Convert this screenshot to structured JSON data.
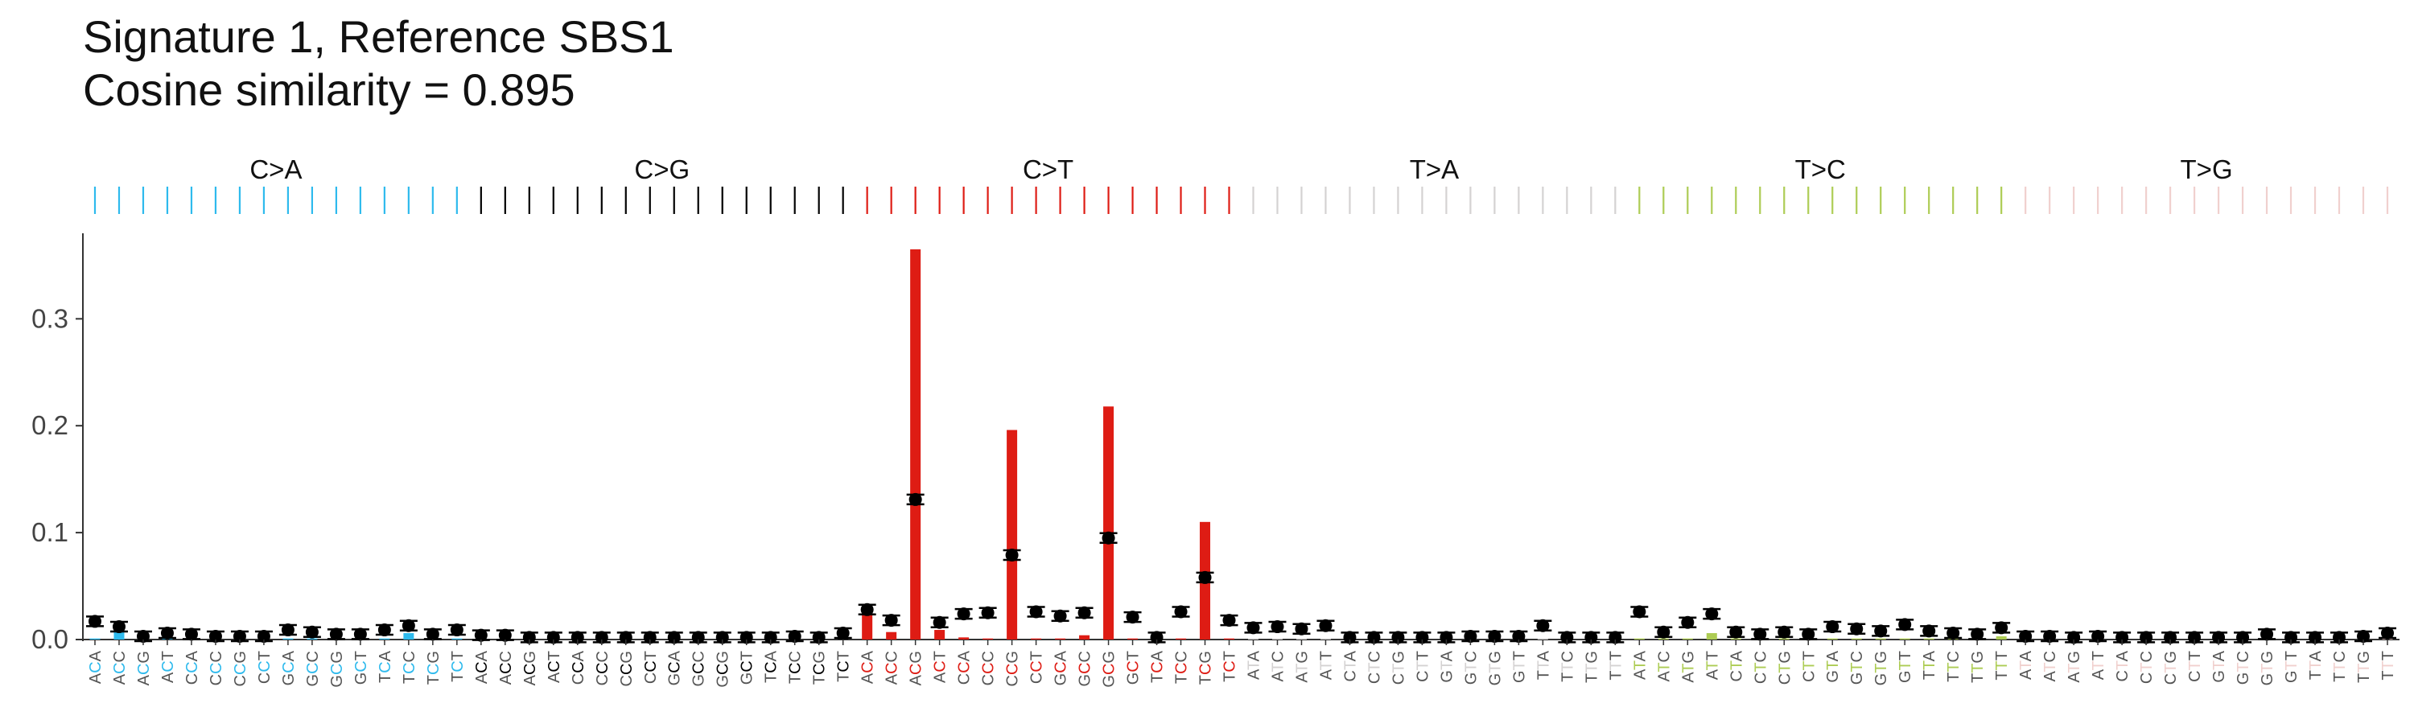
{
  "title_line1": "Signature 1, Reference SBS1",
  "title_line2": "Cosine similarity = 0.895",
  "chart_data": {
    "type": "bar",
    "mutation_types": [
      "C>A",
      "C>G",
      "C>T",
      "T>A",
      "T>C",
      "T>G"
    ],
    "type_colors": [
      "#2EBAED",
      "#000000",
      "#DE1C14",
      "#D4D2D2",
      "#ADCC54",
      "#F0D0CE"
    ],
    "contexts_c": [
      "ACA",
      "ACC",
      "ACG",
      "ACT",
      "CCA",
      "CCC",
      "CCG",
      "CCT",
      "GCA",
      "GCC",
      "GCG",
      "GCT",
      "TCA",
      "TCC",
      "TCG",
      "TCT"
    ],
    "contexts_t": [
      "ATA",
      "ATC",
      "ATG",
      "ATT",
      "CTA",
      "CTC",
      "CTG",
      "CTT",
      "GTA",
      "GTC",
      "GTG",
      "GTT",
      "TTA",
      "TTC",
      "TTG",
      "TTT"
    ],
    "ylim": [
      0,
      0.38
    ],
    "yticks": [
      0.0,
      0.1,
      0.2,
      0.3
    ],
    "ytick_labels": [
      "0.0",
      "0.1",
      "0.2",
      "0.3"
    ],
    "series": [
      {
        "name": "Reference SBS1",
        "values": [
          0.001,
          0.01,
          0.001,
          0.001,
          0.001,
          0.001,
          0.001,
          0.001,
          0.001,
          0.001,
          0.001,
          0.001,
          0.001,
          0.006,
          0.001,
          0.001,
          0.001,
          0.001,
          0.001,
          0.001,
          0.001,
          0.001,
          0.001,
          0.001,
          0.001,
          0.001,
          0.001,
          0.001,
          0.001,
          0.001,
          0.001,
          0.001,
          0.025,
          0.007,
          0.365,
          0.009,
          0.002,
          0.001,
          0.196,
          0.001,
          0.001,
          0.004,
          0.218,
          0.001,
          0.001,
          0.001,
          0.11,
          0.001,
          0.001,
          0.001,
          0.001,
          0.001,
          0.001,
          0.001,
          0.001,
          0.001,
          0.001,
          0.001,
          0.001,
          0.001,
          0.001,
          0.001,
          0.001,
          0.001,
          0.001,
          0.001,
          0.001,
          0.006,
          0.001,
          0.001,
          0.001,
          0.001,
          0.001,
          0.001,
          0.001,
          0.001,
          0.001,
          0.001,
          0.001,
          0.003,
          0.001,
          0.001,
          0.001,
          0.001,
          0.001,
          0.001,
          0.001,
          0.001,
          0.001,
          0.001,
          0.001,
          0.001,
          0.001,
          0.001,
          0.001,
          0.001
        ]
      },
      {
        "name": "Signature 1",
        "values": [
          0.017,
          0.012,
          0.003,
          0.006,
          0.005,
          0.003,
          0.003,
          0.003,
          0.009,
          0.007,
          0.005,
          0.005,
          0.009,
          0.013,
          0.005,
          0.009,
          0.004,
          0.004,
          0.002,
          0.002,
          0.002,
          0.002,
          0.002,
          0.002,
          0.002,
          0.002,
          0.002,
          0.002,
          0.002,
          0.003,
          0.002,
          0.006,
          0.028,
          0.018,
          0.131,
          0.016,
          0.024,
          0.025,
          0.079,
          0.026,
          0.022,
          0.025,
          0.095,
          0.021,
          0.002,
          0.026,
          0.058,
          0.018,
          0.011,
          0.012,
          0.01,
          0.013,
          0.002,
          0.002,
          0.002,
          0.002,
          0.002,
          0.003,
          0.003,
          0.003,
          0.013,
          0.002,
          0.002,
          0.002,
          0.026,
          0.007,
          0.016,
          0.024,
          0.007,
          0.005,
          0.007,
          0.005,
          0.012,
          0.01,
          0.008,
          0.014,
          0.008,
          0.006,
          0.005,
          0.011,
          0.003,
          0.003,
          0.002,
          0.003,
          0.002,
          0.002,
          0.002,
          0.002,
          0.002,
          0.002,
          0.005,
          0.002,
          0.002,
          0.002,
          0.003,
          0.006
        ]
      }
    ]
  }
}
